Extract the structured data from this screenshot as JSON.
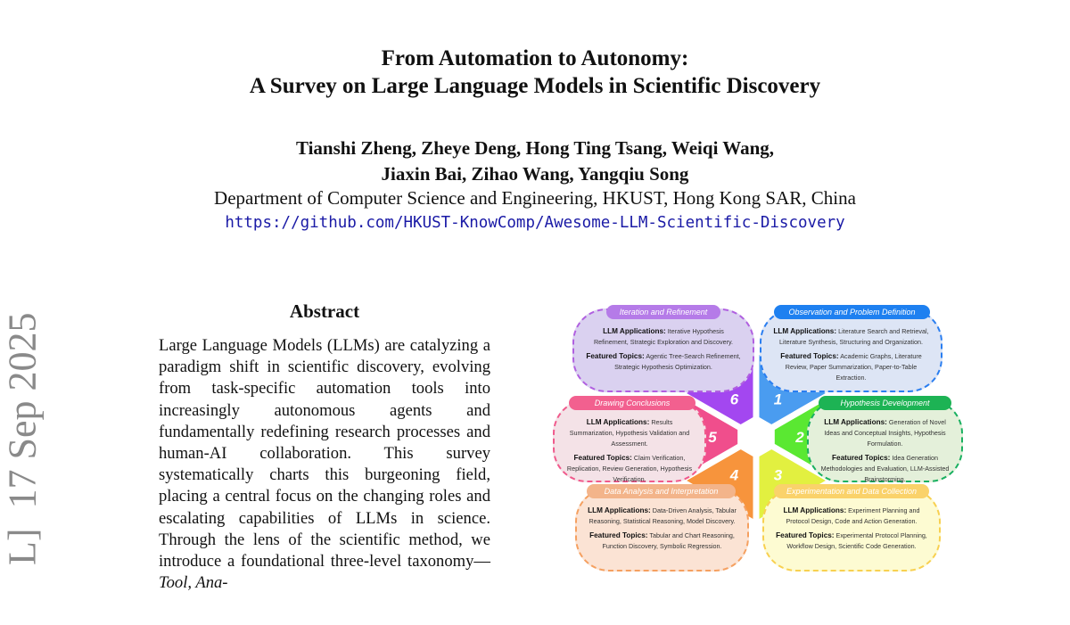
{
  "header": {
    "title_line1": "From Automation to Autonomy:",
    "title_line2": "A Survey on Large Language Models in Scientific Discovery",
    "authors_line1": "Tianshi Zheng, Zheye Deng, Hong Ting Tsang, Weiqi Wang,",
    "authors_line2": "Jiaxin Bai, Zihao Wang, Yangqiu Song",
    "affiliation": "Department of Computer Science and Engineering, HKUST, Hong Kong SAR, China",
    "url": "https://github.com/HKUST-KnowComp/Awesome-LLM-Scientific-Discovery"
  },
  "arxiv_stamp": "L]  17 Sep 2025",
  "abstract": {
    "heading": "Abstract",
    "text": "Large Language Models (LLMs) are catalyzing a paradigm shift in scientific discovery, evolving from task-specific automation tools into increasingly autonomous agents and fundamentally redefining research processes and human-AI collaboration.  This survey systematically charts this burgeoning field, placing a central focus on the changing roles and escalating capabilities of LLMs in science.  Through the lens of the scientific method, we introduce a foundational three-level taxonomy—",
    "text_italic": "Tool, Ana-"
  },
  "figure": {
    "apps_label": "LLM Applications:",
    "topics_label": "Featured Topics:",
    "stages": [
      {
        "number": "1",
        "title": "Observation and Problem Definition",
        "apps": "Literature Search and Retrieval, Literature Synthesis, Structuring and Organization.",
        "topics": "Academic Graphs, Literature Review, Paper Summarization, Paper-to-Table Extraction.",
        "color": "#4a9cf0",
        "pill": "#1e80f0",
        "fill": "#dde5f5",
        "border": "#2a7ef0"
      },
      {
        "number": "2",
        "title": "Hypothesis Development",
        "apps": "Generation of Novel Ideas and Conceptual Insights, Hypothesis Formulation.",
        "topics": "Idea Generation Methodologies and Evaluation, LLM-Assisted Brainstorming.",
        "color": "#5ae832",
        "pill": "#1db354",
        "fill": "#e4f0da",
        "border": "#1ab060"
      },
      {
        "number": "3",
        "title": "Experimentation and Data Collection",
        "apps": "Experiment Planning and Protocol Design, Code and Action Generation.",
        "topics": "Experimental Protocol Planning, Workflow Design, Scientific Code Generation.",
        "color": "#e2f040",
        "pill": "#fad26a",
        "fill": "#fdfbd2",
        "border": "#f8d050"
      },
      {
        "number": "4",
        "title": "Data Analysis and Interpretation",
        "apps": "Data-Driven Analysis, Tabular Reasoning, Statistical Reasoning, Model Discovery.",
        "topics": "Tabular and Chart Reasoning, Function Discovery, Symbolic Regression.",
        "color": "#f7943c",
        "pill": "#f3b48a",
        "fill": "#fbe3d4",
        "border": "#f5a060"
      },
      {
        "number": "5",
        "title": "Drawing Conclusions",
        "apps": "Results Summarization, Hypothesis Validation and Assessment.",
        "topics": "Claim Verification, Replication, Review Generation, Hypothesis Verification.",
        "color": "#f04e8c",
        "pill": "#f2608f",
        "fill": "#f4e2e7",
        "border": "#f05a8c"
      },
      {
        "number": "6",
        "title": "Iteration and Refinement",
        "apps": "Iterative Hypothesis Refinement, Strategic Exploration and Discovery.",
        "topics": "Agentic Tree-Search Refinement, Strategic Hypothesis Optimization.",
        "color": "#a347f0",
        "pill": "#b57be8",
        "fill": "#dad1f0",
        "border": "#b060e0"
      }
    ]
  }
}
